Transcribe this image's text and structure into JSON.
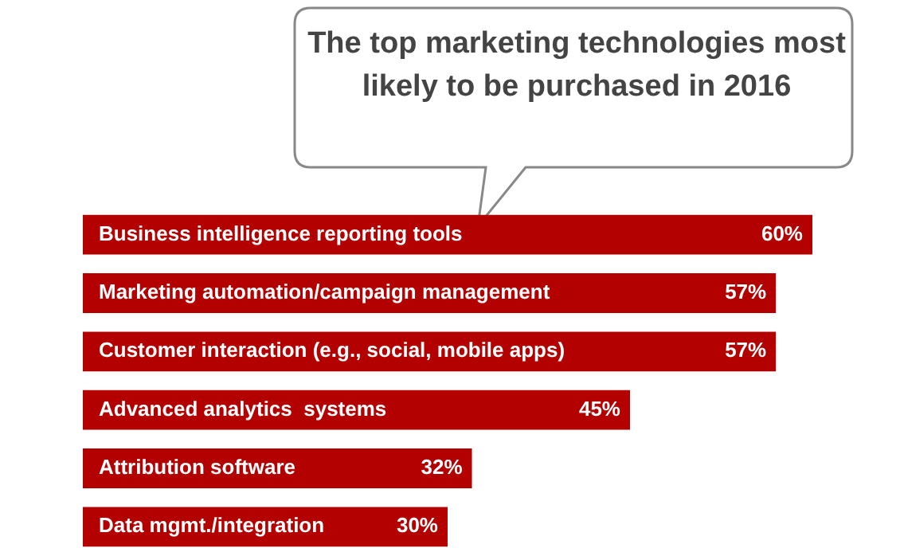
{
  "chart_data": {
    "type": "bar",
    "orientation": "horizontal",
    "title": "The top marketing technologies most likely to be purchased in 2016",
    "categories": [
      "Business intelligence reporting tools",
      "Marketing automation/campaign management",
      "Customer interaction (e.g., social, mobile apps)",
      "Advanced analytics  systems",
      "Attribution software",
      "Data mgmt./integration"
    ],
    "values": [
      60,
      57,
      57,
      45,
      32,
      30
    ],
    "value_labels": [
      "60%",
      "57%",
      "57%",
      "45%",
      "32%",
      "30%"
    ],
    "color": "#b30000"
  }
}
